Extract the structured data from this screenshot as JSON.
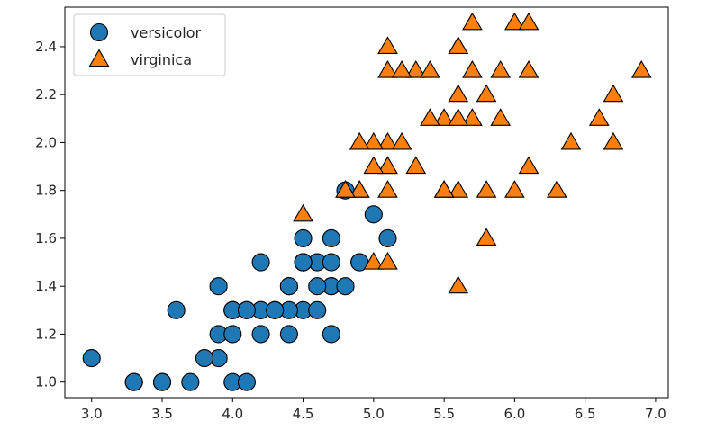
{
  "chart_data": {
    "type": "scatter",
    "title": "",
    "xlabel": "",
    "ylabel": "",
    "xlim": [
      2.81,
      7.09
    ],
    "ylim": [
      0.935,
      2.565
    ],
    "xticks": [
      "3.0",
      "3.5",
      "4.0",
      "4.5",
      "5.0",
      "5.5",
      "6.0",
      "6.5",
      "7.0"
    ],
    "yticks": [
      "1.0",
      "1.2",
      "1.4",
      "1.6",
      "1.8",
      "2.0",
      "2.2",
      "2.4"
    ],
    "grid": false,
    "legend_position": "upper-left",
    "series": [
      {
        "name": "versicolor",
        "marker": "circle",
        "color": "#1f77b4",
        "points": [
          [
            4.7,
            1.4
          ],
          [
            4.5,
            1.5
          ],
          [
            4.9,
            1.5
          ],
          [
            4.0,
            1.3
          ],
          [
            4.6,
            1.5
          ],
          [
            4.5,
            1.3
          ],
          [
            4.7,
            1.6
          ],
          [
            3.3,
            1.0
          ],
          [
            4.6,
            1.3
          ],
          [
            3.9,
            1.4
          ],
          [
            3.5,
            1.0
          ],
          [
            4.2,
            1.5
          ],
          [
            4.0,
            1.0
          ],
          [
            4.7,
            1.4
          ],
          [
            3.6,
            1.3
          ],
          [
            4.4,
            1.4
          ],
          [
            4.5,
            1.5
          ],
          [
            4.1,
            1.0
          ],
          [
            4.5,
            1.5
          ],
          [
            3.9,
            1.1
          ],
          [
            4.8,
            1.8
          ],
          [
            4.0,
            1.3
          ],
          [
            4.9,
            1.5
          ],
          [
            4.7,
            1.2
          ],
          [
            4.3,
            1.3
          ],
          [
            4.4,
            1.4
          ],
          [
            4.8,
            1.4
          ],
          [
            5.0,
            1.7
          ],
          [
            4.5,
            1.5
          ],
          [
            3.5,
            1.0
          ],
          [
            3.8,
            1.1
          ],
          [
            3.7,
            1.0
          ],
          [
            3.9,
            1.2
          ],
          [
            5.1,
            1.6
          ],
          [
            4.5,
            1.5
          ],
          [
            4.5,
            1.6
          ],
          [
            4.7,
            1.5
          ],
          [
            4.4,
            1.3
          ],
          [
            4.1,
            1.3
          ],
          [
            4.0,
            1.3
          ],
          [
            4.4,
            1.2
          ],
          [
            4.6,
            1.4
          ],
          [
            4.0,
            1.2
          ],
          [
            3.3,
            1.0
          ],
          [
            4.2,
            1.3
          ],
          [
            4.2,
            1.2
          ],
          [
            4.2,
            1.3
          ],
          [
            4.3,
            1.3
          ],
          [
            3.0,
            1.1
          ],
          [
            4.1,
            1.3
          ]
        ]
      },
      {
        "name": "virginica",
        "marker": "triangle",
        "color": "#ff7f0e",
        "points": [
          [
            6.0,
            2.5
          ],
          [
            5.1,
            1.9
          ],
          [
            5.9,
            2.1
          ],
          [
            5.6,
            1.8
          ],
          [
            5.8,
            2.2
          ],
          [
            6.6,
            2.1
          ],
          [
            4.5,
            1.7
          ],
          [
            6.3,
            1.8
          ],
          [
            5.8,
            1.8
          ],
          [
            6.1,
            2.5
          ],
          [
            5.1,
            2.0
          ],
          [
            5.3,
            1.9
          ],
          [
            5.5,
            2.1
          ],
          [
            5.0,
            2.0
          ],
          [
            5.1,
            2.4
          ],
          [
            5.3,
            2.3
          ],
          [
            5.5,
            1.8
          ],
          [
            6.7,
            2.2
          ],
          [
            6.9,
            2.3
          ],
          [
            5.0,
            1.5
          ],
          [
            5.7,
            2.3
          ],
          [
            4.9,
            2.0
          ],
          [
            6.7,
            2.0
          ],
          [
            4.9,
            1.8
          ],
          [
            5.7,
            2.1
          ],
          [
            6.0,
            1.8
          ],
          [
            4.8,
            1.8
          ],
          [
            4.9,
            1.8
          ],
          [
            5.6,
            2.1
          ],
          [
            5.8,
            1.6
          ],
          [
            6.1,
            1.9
          ],
          [
            6.4,
            2.0
          ],
          [
            5.6,
            2.2
          ],
          [
            5.1,
            1.5
          ],
          [
            5.6,
            1.4
          ],
          [
            6.1,
            2.3
          ],
          [
            5.6,
            2.4
          ],
          [
            5.5,
            1.8
          ],
          [
            4.8,
            1.8
          ],
          [
            5.4,
            2.1
          ],
          [
            5.6,
            2.4
          ],
          [
            5.1,
            2.3
          ],
          [
            5.1,
            1.9
          ],
          [
            5.9,
            2.3
          ],
          [
            5.7,
            2.5
          ],
          [
            5.2,
            2.3
          ],
          [
            5.0,
            1.9
          ],
          [
            5.2,
            2.0
          ],
          [
            5.4,
            2.3
          ],
          [
            5.1,
            1.8
          ]
        ]
      }
    ]
  }
}
